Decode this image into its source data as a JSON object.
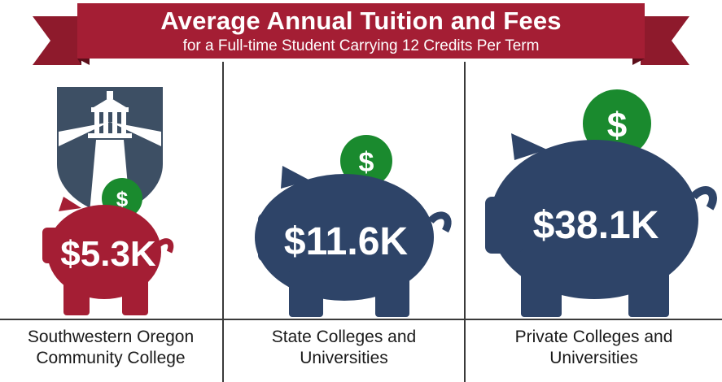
{
  "header": {
    "title": "Average Annual Tuition and Fees",
    "subtitle": "for a Full-time Student Carrying 12 Credits Per Term"
  },
  "colors": {
    "banner_red": "#a41e34",
    "banner_dark_red": "#7a1222",
    "navy": "#2e4468",
    "logo_navy": "#3d4f64",
    "pig_red": "#a41e34",
    "coin_green": "#1a8a2e"
  },
  "items": [
    {
      "amount": "$5.3K",
      "label_line1": "Southwestern Oregon",
      "label_line2": "Community College",
      "coin_symbol": "$"
    },
    {
      "amount": "$11.6K",
      "label_line1": "State Colleges and",
      "label_line2": "Universities",
      "coin_symbol": "$"
    },
    {
      "amount": "$38.1K",
      "label_line1": "Private Colleges and",
      "label_line2": "Universities",
      "coin_symbol": "$"
    }
  ]
}
